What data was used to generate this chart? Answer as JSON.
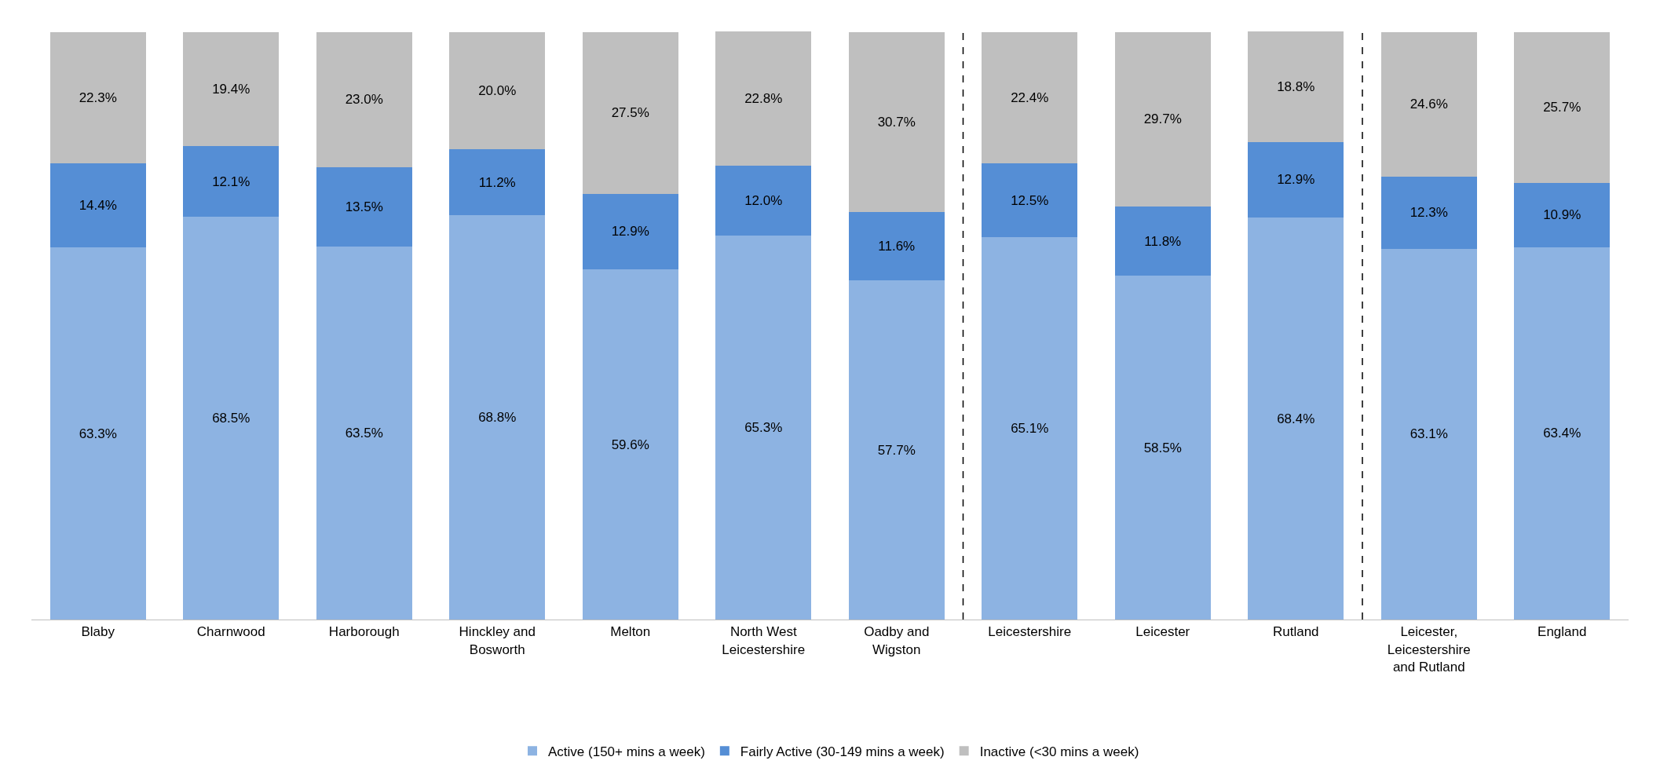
{
  "chart_data": {
    "type": "bar",
    "stacked": true,
    "categories": [
      "Blaby",
      "Charnwood",
      "Harborough",
      "Hinckley and\nBosworth",
      "Melton",
      "North West\nLeicestershire",
      "Oadby and\nWigston",
      "Leicestershire",
      "Leicester",
      "Rutland",
      "Leicester,\nLeicestershire\nand Rutland",
      "England"
    ],
    "series": [
      {
        "name": "Active (150+ mins a week)",
        "color": "#8db3e2",
        "values": [
          63.3,
          68.5,
          63.5,
          68.8,
          59.6,
          65.3,
          57.7,
          65.1,
          58.5,
          68.4,
          63.1,
          63.4
        ],
        "value_labels": [
          "63.3%",
          "68.5%",
          "63.5%",
          "68.8%",
          "59.6%",
          "65.3%",
          "57.7%",
          "65.1%",
          "58.5%",
          "68.4%",
          "63.1%",
          "63.4%"
        ]
      },
      {
        "name": "Fairly Active (30-149 mins a week)",
        "color": "#558ed5",
        "values": [
          14.4,
          12.1,
          13.5,
          11.2,
          12.9,
          12.0,
          11.6,
          12.5,
          11.8,
          12.9,
          12.3,
          10.9
        ],
        "value_labels": [
          "14.4%",
          "12.1%",
          "13.5%",
          "11.2%",
          "12.9%",
          "12.0%",
          "11.6%",
          "12.5%",
          "11.8%",
          "12.9%",
          "12.3%",
          "10.9%"
        ]
      },
      {
        "name": "Inactive (<30 mins a week)",
        "color": "#bfbfbf",
        "values": [
          22.3,
          19.4,
          23.0,
          20.0,
          27.5,
          22.8,
          30.7,
          22.4,
          29.7,
          18.8,
          24.6,
          25.7
        ],
        "value_labels": [
          "22.3%",
          "19.4%",
          "23.0%",
          "20.0%",
          "27.5%",
          "22.8%",
          "30.7%",
          "22.4%",
          "29.7%",
          "18.8%",
          "24.6%",
          "25.7%"
        ]
      }
    ],
    "legend": "bottom"
  }
}
